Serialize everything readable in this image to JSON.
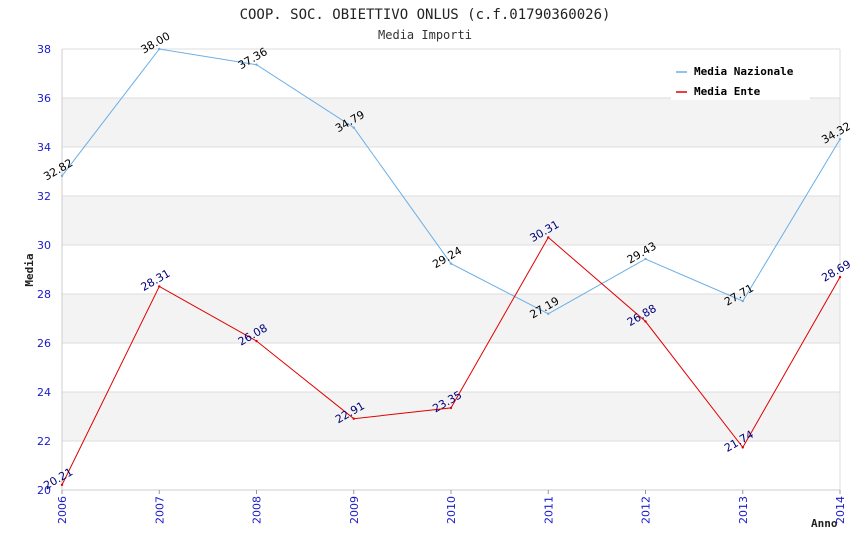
{
  "chart_data": {
    "type": "line",
    "title": "COOP. SOC. OBIETTIVO ONLUS (c.f.01790360026)",
    "subtitle": "Media Importi",
    "xlabel": "Anno",
    "ylabel": "Media",
    "categories": [
      "2006",
      "2007",
      "2008",
      "2009",
      "2010",
      "2011",
      "2012",
      "2013",
      "2014"
    ],
    "ylim": [
      20,
      38
    ],
    "yticks": [
      20,
      22,
      24,
      26,
      28,
      30,
      32,
      34,
      36,
      38
    ],
    "grid": true,
    "legend_position": "top-right",
    "series": [
      {
        "name": "Media Nazionale",
        "color": "#6aaee6",
        "label_color": "#000000",
        "values": [
          32.82,
          38.0,
          37.36,
          34.79,
          29.24,
          27.19,
          29.43,
          27.71,
          34.32
        ],
        "labels": [
          "32.82",
          "38.00",
          "37.36",
          "34.79",
          "29.24",
          "27.19",
          "29.43",
          "27.71",
          "34.32"
        ]
      },
      {
        "name": "Media Ente",
        "color": "#e00000",
        "label_color": "#00007a",
        "values": [
          20.21,
          28.31,
          26.08,
          22.91,
          23.35,
          30.31,
          26.88,
          21.74,
          28.69
        ],
        "labels": [
          "20.21",
          "28.31",
          "26.08",
          "22.91",
          "23.35",
          "30.31",
          "26.88",
          "21.74",
          "28.69"
        ]
      }
    ]
  }
}
